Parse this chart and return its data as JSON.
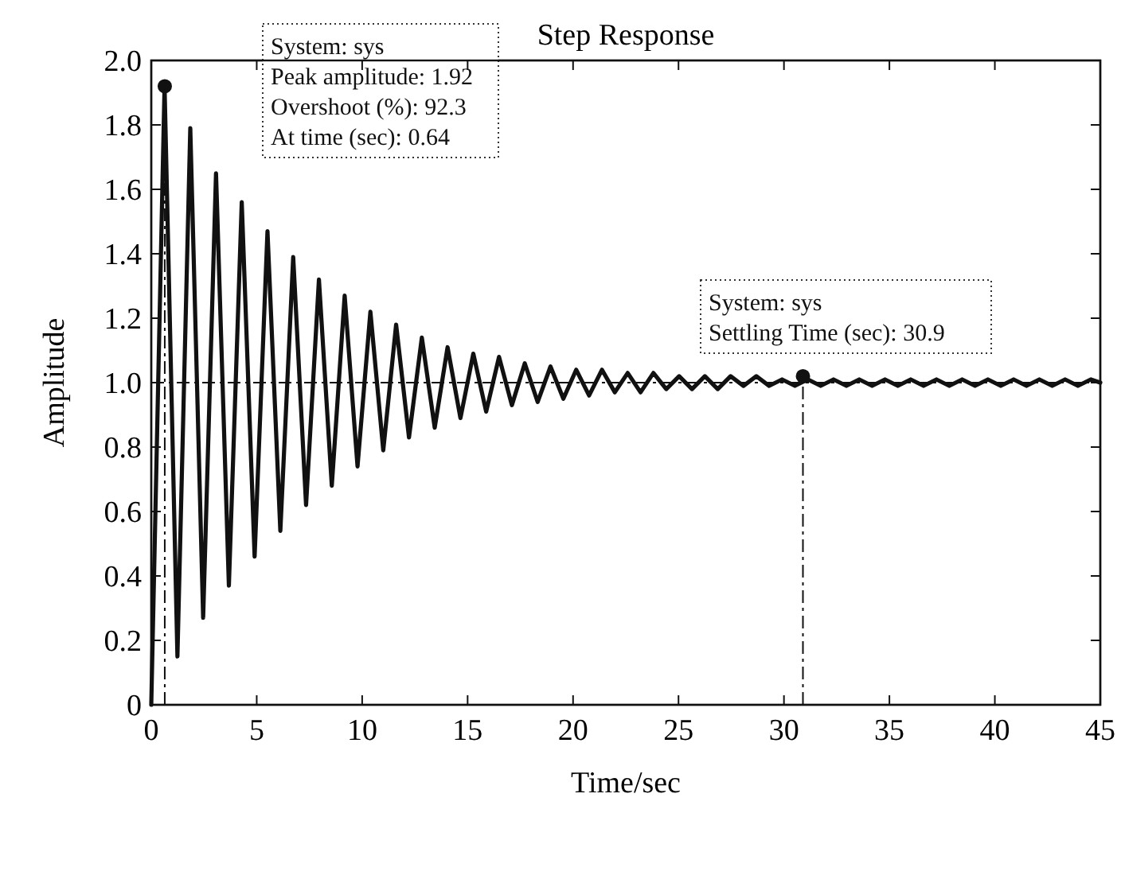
{
  "chart_data": {
    "type": "line",
    "title": "Step Response",
    "xlabel": "Time/sec",
    "ylabel": "Amplitude",
    "xlim": [
      0,
      45
    ],
    "xticks": [
      0,
      5,
      10,
      15,
      20,
      25,
      30,
      35,
      40,
      45
    ],
    "ylim": [
      0,
      2
    ],
    "yticks": [
      0,
      0.2,
      0.4,
      0.6,
      0.8,
      {
        "value": 1,
        "label": "1.0"
      },
      1.2,
      1.4,
      1.6,
      1.8,
      {
        "value": 2,
        "label": "2.0"
      }
    ],
    "grid": false,
    "series": [
      {
        "color": "#111111",
        "marker": "none",
        "line_style": "solid",
        "x": [
          0,
          0.63,
          1.24,
          1.85,
          2.46,
          3.07,
          3.68,
          4.29,
          4.9,
          5.51,
          6.12,
          6.73,
          7.34,
          7.95,
          8.56,
          9.17,
          9.78,
          10.39,
          11.0,
          11.61,
          12.22,
          12.83,
          13.44,
          14.05,
          14.66,
          15.27,
          15.88,
          16.49,
          17.1,
          17.71,
          18.32,
          18.93,
          19.54,
          20.15,
          20.76,
          21.37,
          21.98,
          22.59,
          23.2,
          23.81,
          24.42,
          25.03,
          25.64,
          26.25,
          26.86,
          27.47,
          28.08,
          28.69,
          29.3,
          29.91,
          30.52,
          31.13,
          31.74,
          32.35,
          32.96,
          33.57,
          34.18,
          34.79,
          35.4,
          36.01,
          36.62,
          37.23,
          37.84,
          38.45,
          39.06,
          39.67,
          40.28,
          40.89,
          41.5,
          42.11,
          42.72,
          43.33,
          43.94,
          44.55,
          45
        ],
        "values": [
          0,
          1.92,
          0.15,
          1.79,
          0.27,
          1.65,
          0.37,
          1.56,
          0.46,
          1.47,
          0.54,
          1.39,
          0.62,
          1.32,
          0.68,
          1.27,
          0.74,
          1.22,
          0.79,
          1.18,
          0.83,
          1.14,
          0.86,
          1.11,
          0.89,
          1.09,
          0.91,
          1.08,
          0.93,
          1.06,
          0.94,
          1.05,
          0.95,
          1.04,
          0.96,
          1.04,
          0.97,
          1.03,
          0.97,
          1.03,
          0.98,
          1.02,
          0.98,
          1.02,
          0.98,
          1.02,
          0.99,
          1.02,
          0.99,
          1.01,
          0.99,
          1.01,
          0.99,
          1.01,
          0.99,
          1.01,
          0.99,
          1.01,
          0.99,
          1.01,
          0.99,
          1.01,
          0.99,
          1.01,
          0.99,
          1.01,
          0.99,
          1.01,
          0.99,
          1.01,
          0.99,
          1.01,
          0.99,
          1.01,
          1.0
        ]
      },
      {
        "type": "scatter",
        "color": "#111111",
        "marker": "circle",
        "x": [
          0.64,
          30.9
        ],
        "values": [
          1.92,
          1.02
        ]
      }
    ],
    "ref_lines": [
      {
        "axis": "y",
        "value": 1,
        "line_style": "dashed",
        "color": "#111111"
      },
      {
        "axis": "x",
        "value": 0.64,
        "line_style": "dashed",
        "color": "#111111"
      },
      {
        "axis": "x",
        "value": 30.9,
        "line_style": "dashed",
        "color": "#111111"
      }
    ],
    "annotations": [
      "System: sys\nPeak amplitude: 1.92\nOvershoot (%): 92.3\nAt time (sec): 0.64",
      "System: sys\nSettling Time (sec): 30.9"
    ]
  }
}
